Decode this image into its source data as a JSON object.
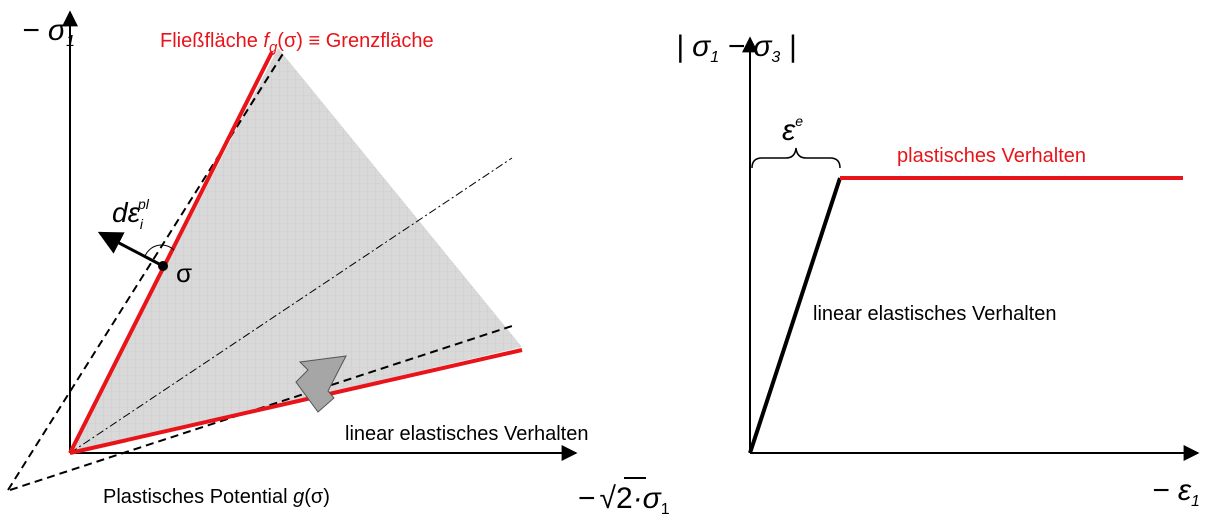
{
  "left": {
    "y_label": {
      "main": "− σ",
      "sub": "1"
    },
    "title": {
      "before": "Fließfläche ",
      "f": "f",
      "sub": "g",
      "after": "(σ) ≡ Grenzfläche"
    },
    "increment": {
      "main": "dε",
      "sub": "i",
      "sup": "pl"
    },
    "point": "σ",
    "elastic": "linear elastisches Verhalten",
    "potential": {
      "before": "Plastisches Potential ",
      "g": "g",
      "after": "(σ)"
    },
    "x_label": {
      "minus": "−",
      "root": "√",
      "two": "2",
      "rest": "·σ",
      "sub": "1"
    }
  },
  "right": {
    "y_label": {
      "open": "| σ",
      "sub1": "1",
      "mid": " − σ",
      "sub3": "3",
      "close": " |"
    },
    "strain": {
      "main": "ε",
      "sup": "e"
    },
    "plastic": "plastisches Verhalten",
    "elastic": "linear elastisches Verhalten",
    "x_label": {
      "main": "− ε",
      "sub": "1"
    }
  }
}
